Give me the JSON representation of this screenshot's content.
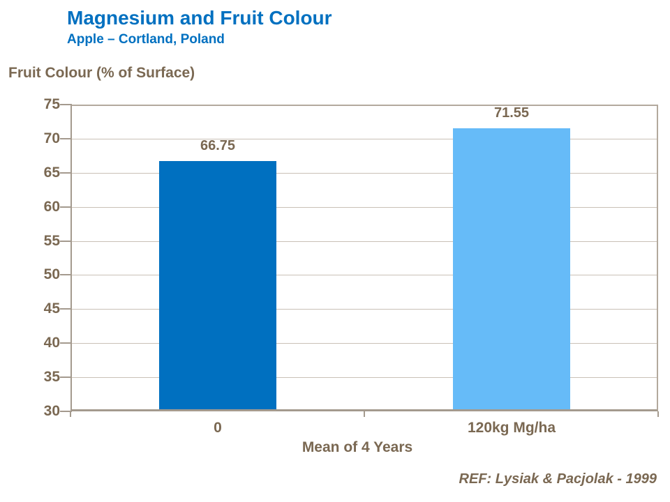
{
  "header": {
    "title": "Magnesium and Fruit Colour",
    "subtitle": "Apple – Cortland, Poland"
  },
  "chart_data": {
    "type": "bar",
    "title": "Magnesium and Fruit Colour",
    "subtitle": "Apple – Cortland, Poland",
    "categories": [
      "0",
      "120kg Mg/ha"
    ],
    "values": [
      66.75,
      71.55
    ],
    "data_labels": [
      "66.75",
      "71.55"
    ],
    "xlabel": "Mean of 4 Years",
    "ylabel": "Fruit Colour (% of Surface)",
    "ylim": [
      30,
      75
    ],
    "ytick_step": 5,
    "yticks": [
      30,
      35,
      40,
      45,
      50,
      55,
      60,
      65,
      70,
      75
    ],
    "grid": true,
    "legend": false,
    "bar_colors": [
      "#0070C0",
      "#66BBF8"
    ]
  },
  "footer": {
    "reference": "REF: Lysiak & Pacjolak - 1999"
  },
  "colors": {
    "title_blue": "#0070C0",
    "text_brown": "#7A6852",
    "gridline": "#C9C0B6",
    "axis_line": "#A49A8E",
    "plot_border": "#B3A99D",
    "bar_dark_blue": "#0070C0",
    "bar_light_blue": "#66BBF8",
    "background": "#FFFFFF"
  }
}
